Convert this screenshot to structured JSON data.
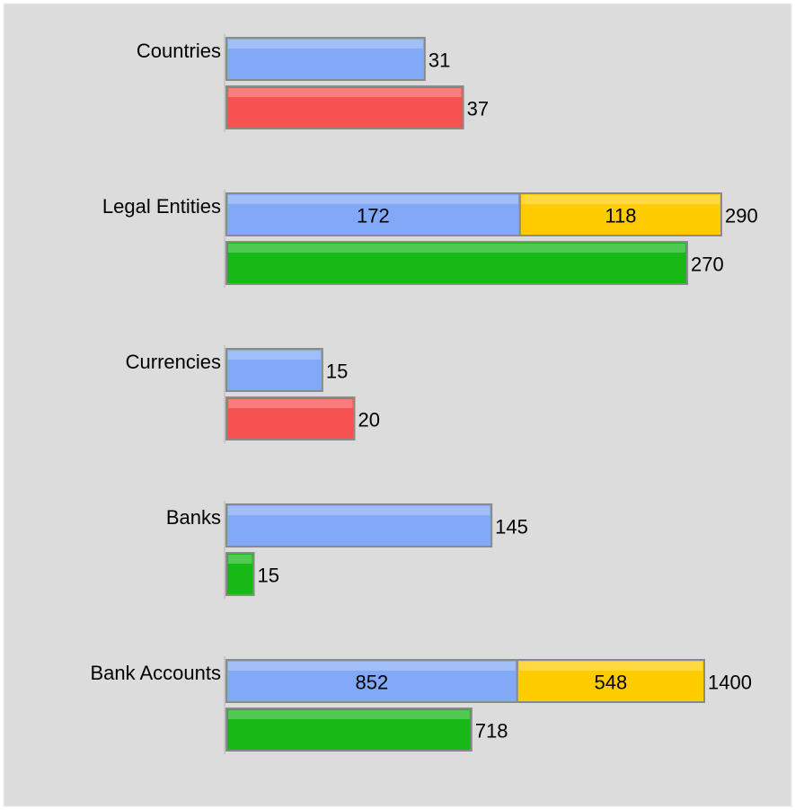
{
  "chart_data": {
    "type": "bar",
    "groups": [
      {
        "label": "Countries",
        "xlim": [
          0,
          80
        ],
        "rows": [
          {
            "segments": [
              {
                "value": 31,
                "color": "#82a9f7"
              }
            ]
          },
          {
            "segments": [
              {
                "value": 37,
                "color": "#f75252"
              }
            ]
          }
        ]
      },
      {
        "label": "Legal Entities",
        "xlim": [
          0,
          300
        ],
        "rows": [
          {
            "segments": [
              {
                "value": 172,
                "color": "#82a9f7"
              },
              {
                "value": 118,
                "color": "#ffcc00"
              }
            ],
            "total": 290
          },
          {
            "segments": [
              {
                "value": 270,
                "color": "#16b916"
              }
            ]
          }
        ]
      },
      {
        "label": "Currencies",
        "xlim": [
          0,
          80
        ],
        "rows": [
          {
            "segments": [
              {
                "value": 15,
                "color": "#82a9f7"
              }
            ]
          },
          {
            "segments": [
              {
                "value": 20,
                "color": "#f75252"
              }
            ]
          }
        ]
      },
      {
        "label": "Banks",
        "xlim": [
          0,
          280
        ],
        "rows": [
          {
            "segments": [
              {
                "value": 145,
                "color": "#82a9f7"
              }
            ]
          },
          {
            "segments": [
              {
                "value": 15,
                "color": "#16b916"
              }
            ]
          }
        ]
      },
      {
        "label": "Bank Accounts",
        "xlim": [
          0,
          1500
        ],
        "rows": [
          {
            "segments": [
              {
                "value": 852,
                "color": "#82a9f7"
              },
              {
                "value": 548,
                "color": "#ffcc00"
              }
            ],
            "total": 1400
          },
          {
            "segments": [
              {
                "value": 718,
                "color": "#16b916"
              }
            ]
          }
        ]
      }
    ]
  }
}
